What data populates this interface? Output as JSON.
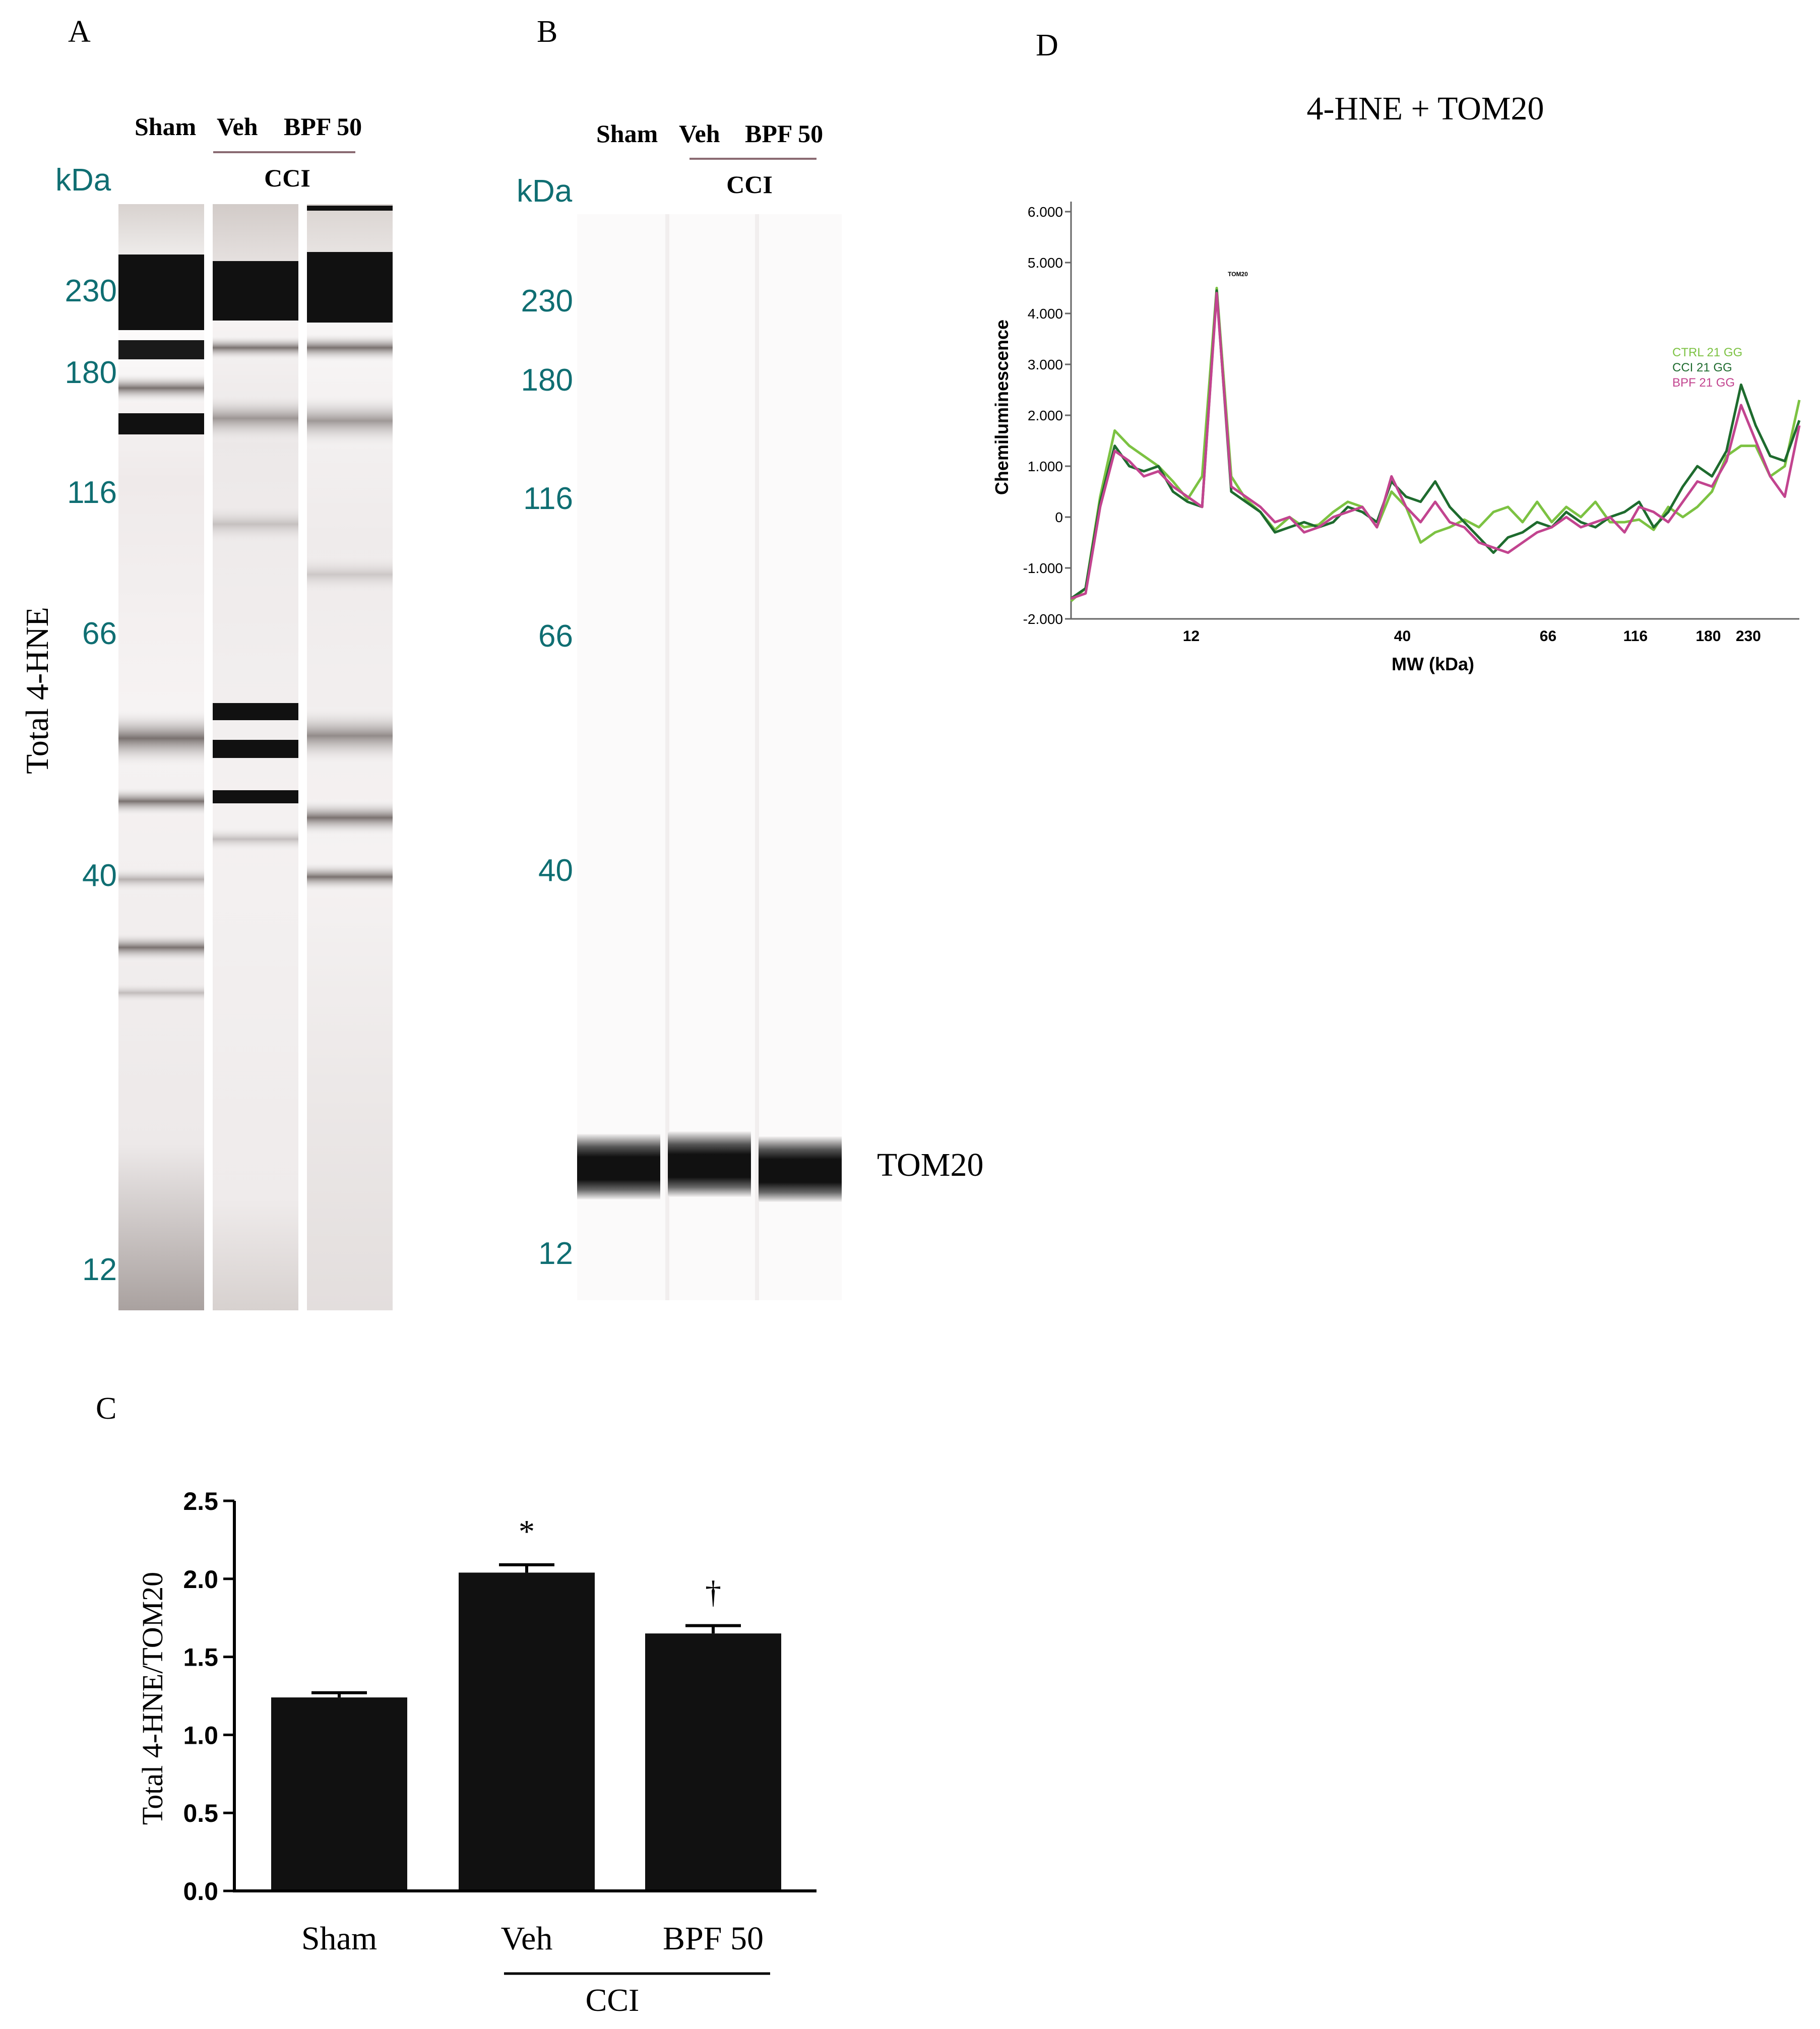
{
  "panel_labels": {
    "a": "A",
    "b": "B",
    "c": "C",
    "d": "D"
  },
  "panel_a": {
    "kda_label": "kDa",
    "lanes": [
      "Sham",
      "Veh",
      "BPF 50"
    ],
    "group_label": "CCI",
    "y_label": "Total 4-HNE",
    "markers": [
      "230",
      "180",
      "116",
      "66",
      "40",
      "12"
    ]
  },
  "panel_b": {
    "kda_label": "kDa",
    "lanes": [
      "Sham",
      "Veh",
      "BPF 50"
    ],
    "group_label": "CCI",
    "markers": [
      "230",
      "180",
      "116",
      "66",
      "40",
      "12"
    ],
    "band_label": "TOM20"
  },
  "colors": {
    "marker_teal": "#0f6e72",
    "bar_fill": "#111111",
    "ctrl": "#7cc242",
    "cci": "#1e6b2e",
    "bpf": "#c2448f"
  },
  "chart_data": [
    {
      "type": "bar",
      "panel": "C",
      "categories": [
        "Sham",
        "Veh",
        "BPF 50"
      ],
      "values": [
        1.24,
        2.04,
        1.65
      ],
      "errors": [
        0.03,
        0.05,
        0.05
      ],
      "annotations": [
        "",
        "*",
        "†"
      ],
      "ylabel": "Total 4-HNE/TOM20",
      "group_label": "CCI",
      "ylim": [
        0,
        2.5
      ],
      "yticks": [
        "0.0",
        "0.5",
        "1.0",
        "1.5",
        "2.0",
        "2.5"
      ]
    },
    {
      "type": "line",
      "panel": "D",
      "title": "4-HNE + TOM20",
      "xlabel": "MW (kDa)",
      "ylabel": "Chemiluminescence",
      "xticks": [
        "12",
        "40",
        "66",
        "116",
        "180",
        "230"
      ],
      "yticks": [
        "6.000",
        "5.000",
        "4.000",
        "3.000",
        "2.000",
        "1.000",
        "0",
        "-1.000",
        "-2.000"
      ],
      "ylim": [
        -2000,
        6000
      ],
      "peak_label": "TOM20",
      "legend_position": "right",
      "x": [
        0,
        0.02,
        0.04,
        0.06,
        0.08,
        0.1,
        0.12,
        0.14,
        0.16,
        0.18,
        0.2,
        0.22,
        0.24,
        0.26,
        0.28,
        0.3,
        0.32,
        0.34,
        0.36,
        0.38,
        0.4,
        0.42,
        0.44,
        0.46,
        0.48,
        0.5,
        0.52,
        0.54,
        0.56,
        0.58,
        0.6,
        0.62,
        0.64,
        0.66,
        0.68,
        0.7,
        0.72,
        0.74,
        0.76,
        0.78,
        0.8,
        0.82,
        0.84,
        0.86,
        0.88,
        0.9,
        0.92,
        0.94,
        0.96,
        0.98,
        1
      ],
      "series": [
        {
          "name": "CTRL 21 GG",
          "color_key": "ctrl",
          "values": [
            -1650,
            -1400,
            400,
            1700,
            1400,
            1200,
            1000,
            700,
            350,
            800,
            4500,
            800,
            350,
            100,
            -250,
            0,
            -200,
            -150,
            100,
            300,
            200,
            -200,
            500,
            200,
            -500,
            -300,
            -200,
            -50,
            -200,
            100,
            200,
            -100,
            300,
            -100,
            200,
            0,
            300,
            -100,
            -100,
            -50,
            -250,
            200,
            0,
            200,
            500,
            1200,
            1400,
            1400,
            800,
            1000,
            2300
          ]
        },
        {
          "name": "CCI 21 GG",
          "color_key": "cci",
          "values": [
            -1600,
            -1400,
            300,
            1400,
            1000,
            900,
            1000,
            500,
            300,
            200,
            4450,
            500,
            300,
            100,
            -300,
            -200,
            -100,
            -200,
            -100,
            200,
            100,
            -100,
            700,
            400,
            300,
            700,
            200,
            -100,
            -400,
            -700,
            -400,
            -300,
            -100,
            -200,
            100,
            -100,
            -200,
            0,
            100,
            300,
            -200,
            100,
            600,
            1000,
            800,
            1300,
            2600,
            1800,
            1200,
            1100,
            1900
          ]
        },
        {
          "name": "BPF 21 GG",
          "color_key": "bpf",
          "values": [
            -1600,
            -1500,
            200,
            1300,
            1100,
            800,
            900,
            600,
            400,
            200,
            4400,
            600,
            400,
            200,
            -100,
            0,
            -300,
            -200,
            0,
            100,
            200,
            -200,
            800,
            200,
            -100,
            300,
            -100,
            -200,
            -500,
            -600,
            -700,
            -500,
            -300,
            -200,
            0,
            -200,
            -100,
            0,
            -300,
            200,
            100,
            -100,
            300,
            700,
            600,
            1100,
            2200,
            1500,
            800,
            400,
            1800
          ]
        }
      ]
    }
  ]
}
